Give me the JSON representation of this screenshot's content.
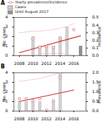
{
  "chart_data": [
    {
      "type": "bar",
      "title": "A",
      "xlim": [
        2007.2,
        2017.8
      ],
      "xticks": [
        2008,
        2010,
        2012,
        2014,
        2016
      ],
      "ylabel": "No. cases",
      "ylim": [
        0,
        4
      ],
      "yticks": [
        0,
        1,
        2,
        3,
        4
      ],
      "y2label": "Incidence",
      "y2lim": [
        0,
        0.5
      ],
      "y2ticks": [
        {
          "value": 0,
          "label": "0.0"
        },
        0.1,
        0.2,
        0.3,
        0.4,
        0.5
      ],
      "legend": "upper left",
      "series": [
        {
          "name": "Yearly prevalence/Incidence",
          "type": "scatter",
          "marker": "circle",
          "color": "#e06060",
          "axis": "y2",
          "x": [
            2010,
            2011,
            2012,
            2013,
            2014,
            2016
          ],
          "values": [
            0.22,
            0.11,
            0.12,
            0.11,
            0.22,
            0.34
          ]
        },
        {
          "name": "Cases",
          "type": "bar",
          "color": "#d0d0d0",
          "x": [
            2010,
            2011,
            2012,
            2013,
            2014,
            2015,
            2016
          ],
          "values": [
            2,
            1,
            1,
            1,
            2,
            3,
            0
          ]
        },
        {
          "name": "Until August 2017",
          "type": "bar",
          "color": "#909090",
          "x": [
            2017
          ],
          "values": [
            1
          ]
        },
        {
          "type": "line",
          "line_style": "dashed",
          "color": "#f0aaaa",
          "axis": "y2",
          "x": [
            2008,
            2009,
            2010,
            2011,
            2012,
            2013,
            2014,
            2015,
            2016
          ],
          "values": [
            0.3,
            0.31,
            0.32,
            0.32,
            0.33,
            0.34,
            0.36,
            0.38,
            0.42
          ]
        },
        {
          "type": "line",
          "line_style": "dashed",
          "color": "#f0aaaa",
          "axis": "y2",
          "x": [
            2008,
            2009,
            2010,
            2011,
            2012,
            2013,
            2014,
            2015,
            2016
          ],
          "values": [
            0.01,
            0.01,
            0.01,
            0.02,
            0.03,
            0.03,
            0.03,
            0.02,
            0.01
          ]
        },
        {
          "type": "line",
          "line_style": "solid",
          "color": "#cc2222",
          "axis": "y2",
          "x": [
            2008,
            2017
          ],
          "values": [
            0.04,
            0.26
          ]
        }
      ]
    },
    {
      "type": "bar",
      "title": "B",
      "xlim": [
        2007.2,
        2017.8
      ],
      "xticks": [
        2008,
        2010,
        2012,
        2014,
        2016
      ],
      "ylabel": "No. cases",
      "ylim": [
        0,
        4
      ],
      "yticks": [
        0,
        1,
        2,
        3,
        4
      ],
      "y2label": "Prevalence",
      "y2lim": [
        0,
        2.0
      ],
      "y2ticks": [
        {
          "value": 0,
          "label": "0.0"
        },
        0.5,
        {
          "value": 1,
          "label": "1.0"
        },
        1.5,
        {
          "value": 2,
          "label": "2.0"
        }
      ],
      "series": [
        {
          "type": "scatter",
          "marker": "circle",
          "color": "#e06060",
          "axis": "y2",
          "x": [
            2008,
            2009,
            2010,
            2011,
            2012,
            2013,
            2014
          ],
          "values": [
            0.65,
            0.65,
            0.55,
            0.65,
            0.05,
            0.55,
            1.75
          ]
        },
        {
          "type": "bar",
          "color": "#d0d0d0",
          "x": [
            2008,
            2009,
            2010,
            2011,
            2012,
            2013,
            2014
          ],
          "values": [
            1,
            1,
            1,
            1,
            0,
            1,
            4
          ]
        },
        {
          "type": "line",
          "line_style": "dashed",
          "color": "#f0aaaa",
          "axis": "y2",
          "x": [
            2008,
            2009,
            2010,
            2011,
            2012,
            2013,
            2014
          ],
          "values": [
            1.55,
            1.6,
            1.65,
            1.7,
            1.8,
            1.9,
            2.0
          ]
        },
        {
          "type": "line",
          "line_style": "dashed",
          "color": "#f0aaaa",
          "axis": "y2",
          "x": [
            2008,
            2009,
            2010,
            2011,
            2012,
            2013,
            2014
          ],
          "values": [
            0.02,
            0.02,
            0.02,
            0.02,
            0.02,
            0.02,
            0.02
          ]
        },
        {
          "type": "line",
          "line_style": "solid",
          "color": "#cc2222",
          "axis": "y2",
          "x": [
            2008,
            2016
          ],
          "values": [
            0.5,
            1.1
          ]
        }
      ]
    }
  ]
}
